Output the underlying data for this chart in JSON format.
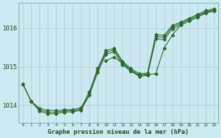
{
  "title": "Graphe pression niveau de la mer (hPa)",
  "bg_color": "#cce8f0",
  "grid_color": "#a8cdd8",
  "line_color": "#2d6a2d",
  "x_values": [
    0,
    1,
    2,
    3,
    4,
    5,
    6,
    7,
    8,
    9,
    10,
    11,
    12,
    13,
    14,
    15,
    16,
    17,
    18,
    19,
    20,
    21,
    22,
    23
  ],
  "ylim": [
    1013.55,
    1016.65
  ],
  "yticks": [
    1014,
    1015,
    1016
  ],
  "line1": [
    1014.55,
    1014.1,
    1013.85,
    1013.78,
    1013.78,
    1013.82,
    1013.83,
    1013.87,
    1014.25,
    1014.85,
    1015.32,
    1015.38,
    1015.05,
    1014.88,
    1014.75,
    1014.77,
    1015.72,
    1015.7,
    1015.98,
    1016.08,
    1016.18,
    1016.28,
    1016.38,
    1016.44
  ],
  "line2": [
    1014.55,
    1014.1,
    1013.88,
    1013.82,
    1013.82,
    1013.85,
    1013.86,
    1013.9,
    1014.3,
    1014.9,
    1015.37,
    1015.43,
    1015.1,
    1014.92,
    1014.78,
    1014.8,
    1015.78,
    1015.76,
    1016.03,
    1016.12,
    1016.22,
    1016.32,
    1016.42,
    1016.47
  ],
  "line3": [
    1014.55,
    1014.1,
    1013.92,
    1013.87,
    1013.86,
    1013.88,
    1013.89,
    1013.93,
    1014.34,
    1014.95,
    1015.42,
    1015.47,
    1015.14,
    1014.95,
    1014.82,
    1014.83,
    1015.83,
    1015.81,
    1016.07,
    1016.15,
    1016.25,
    1016.35,
    1016.45,
    1016.5
  ],
  "line4": [
    null,
    null,
    null,
    null,
    null,
    null,
    null,
    null,
    null,
    null,
    1015.15,
    1015.25,
    1015.08,
    1014.88,
    1014.78,
    1014.79,
    1014.82,
    1015.48,
    1015.82,
    1016.08,
    1016.18,
    1016.28,
    1016.4,
    1016.45
  ]
}
